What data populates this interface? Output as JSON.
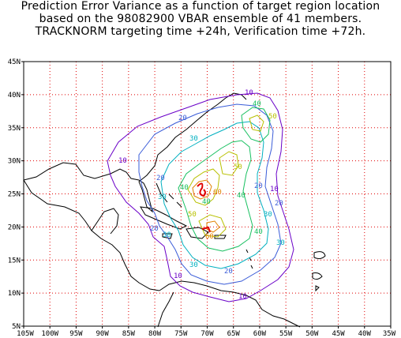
{
  "title": {
    "line1": "Prediction Error Variance as a function of target region location",
    "line2": "based on the 98082900 VBAR ensemble of 41 members.",
    "line3": "TRACKNORM targeting time +24h, Verification time +72h."
  },
  "axes": {
    "lon_labels": [
      "105W",
      "100W",
      "95W",
      "90W",
      "85W",
      "80W",
      "75W",
      "70W",
      "65W",
      "60W",
      "55W",
      "50W",
      "45W",
      "40W",
      "35W"
    ],
    "lat_labels": [
      "45N",
      "40N",
      "35N",
      "30N",
      "25N",
      "20N",
      "15N",
      "10N",
      "5N"
    ],
    "lon_range": [
      -105,
      -35
    ],
    "lat_range": [
      5,
      45
    ],
    "grid": "dotted red, every 5 degrees"
  },
  "contour_levels": [
    "10",
    "20",
    "30",
    "40",
    "50",
    "60"
  ],
  "colors": {
    "grid": "#e00000",
    "coast": "#000000",
    "c10": "#6a00c8",
    "c20": "#3a5cd8",
    "c30": "#00b0c0",
    "c40": "#18c060",
    "c50": "#b8c000",
    "c60": "#e08000",
    "peak": "#e00000"
  }
}
